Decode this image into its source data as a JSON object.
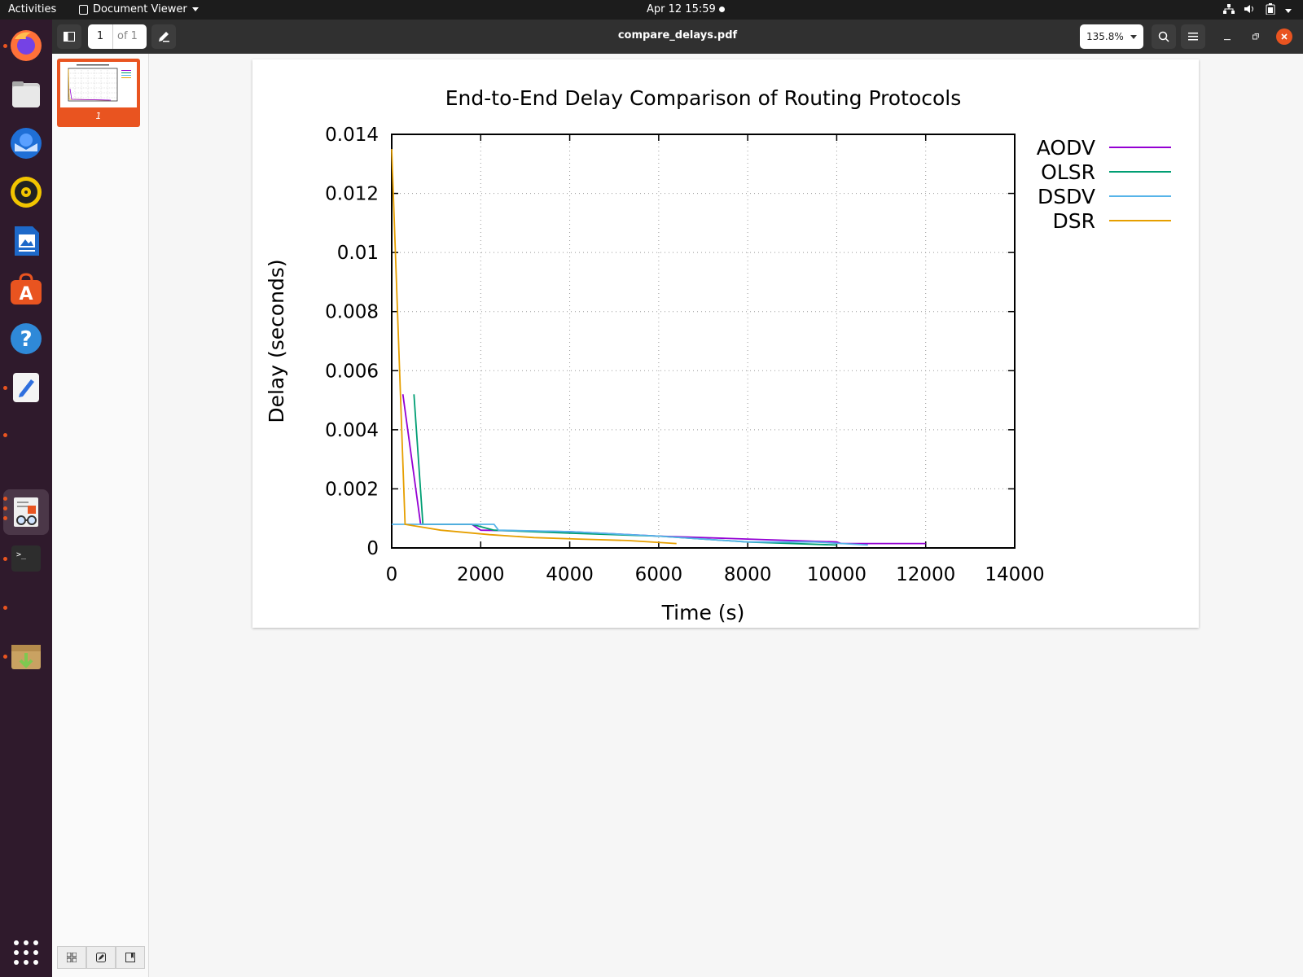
{
  "topbar": {
    "activities": "Activities",
    "app_menu": "Document Viewer",
    "clock": "Apr 12  15:59"
  },
  "dock": {
    "items": [
      {
        "name": "firefox-icon",
        "color": "#ff7139"
      },
      {
        "name": "files-icon",
        "color": "#8a8a8a"
      },
      {
        "name": "thunderbird-icon",
        "color": "#2a7ee0"
      },
      {
        "name": "rhythmbox-icon",
        "color": "#f6c915"
      },
      {
        "name": "writer-icon",
        "color": "#1d69c9"
      },
      {
        "name": "software-icon",
        "color": "#e95420"
      },
      {
        "name": "help-icon",
        "color": "#2f89d8"
      },
      {
        "name": "text-editor-icon",
        "color": "#f0f0f0"
      },
      {
        "name": "document-viewer-icon",
        "color": "#efefef"
      },
      {
        "name": "terminal-icon",
        "color": "#2d2d2d"
      },
      {
        "name": "archive-icon",
        "color": "#c9a262"
      }
    ],
    "apps_grid": "show-applications-icon"
  },
  "headerbar": {
    "page_number": "1",
    "page_of": "of 1",
    "title": "compare_delays.pdf",
    "zoom": "135.8%"
  },
  "sidebar": {
    "thumbnail_label": "1"
  },
  "chart_data": {
    "type": "line",
    "title": "End-to-End Delay Comparison of Routing Protocols",
    "xlabel": "Time (s)",
    "ylabel": "Delay (seconds)",
    "xlim": [
      0,
      14000
    ],
    "ylim": [
      0,
      0.014
    ],
    "xticks": [
      "0",
      "2000",
      "4000",
      "6000",
      "8000",
      "10000",
      "12000",
      "14000"
    ],
    "yticks": [
      "0",
      "0.002",
      "0.004",
      "0.006",
      "0.008",
      "0.01",
      "0.012",
      "0.014"
    ],
    "grid": true,
    "legend_position": "outside-right",
    "series": [
      {
        "name": "AODV",
        "color": "#9400d3",
        "x": [
          250,
          650,
          1800,
          2000,
          4000,
          6000,
          8000,
          10000,
          10100,
          12000
        ],
        "y": [
          0.0052,
          0.0008,
          0.0008,
          0.0006,
          0.00055,
          0.0004,
          0.0003,
          0.0002,
          0.00015,
          0.00015
        ]
      },
      {
        "name": "OLSR",
        "color": "#009e73",
        "x": [
          500,
          700,
          1800,
          2300,
          4000,
          6000,
          8000,
          10000
        ],
        "y": [
          0.0052,
          0.0008,
          0.0008,
          0.0006,
          0.0005,
          0.0004,
          0.0002,
          0.0001
        ]
      },
      {
        "name": "DSDV",
        "color": "#56b4e9",
        "x": [
          0,
          1500,
          2300,
          2400,
          4000,
          6000,
          8000,
          9500,
          10700
        ],
        "y": [
          0.0008,
          0.0008,
          0.0008,
          0.0006,
          0.00055,
          0.0004,
          0.0002,
          0.0002,
          0.0001
        ]
      },
      {
        "name": "DSR",
        "color": "#e69f00",
        "x": [
          0,
          300,
          1100,
          2200,
          3200,
          4200,
          5300,
          6400
        ],
        "y": [
          0.0135,
          0.0008,
          0.0006,
          0.00045,
          0.00035,
          0.0003,
          0.00025,
          0.00015
        ]
      }
    ]
  }
}
